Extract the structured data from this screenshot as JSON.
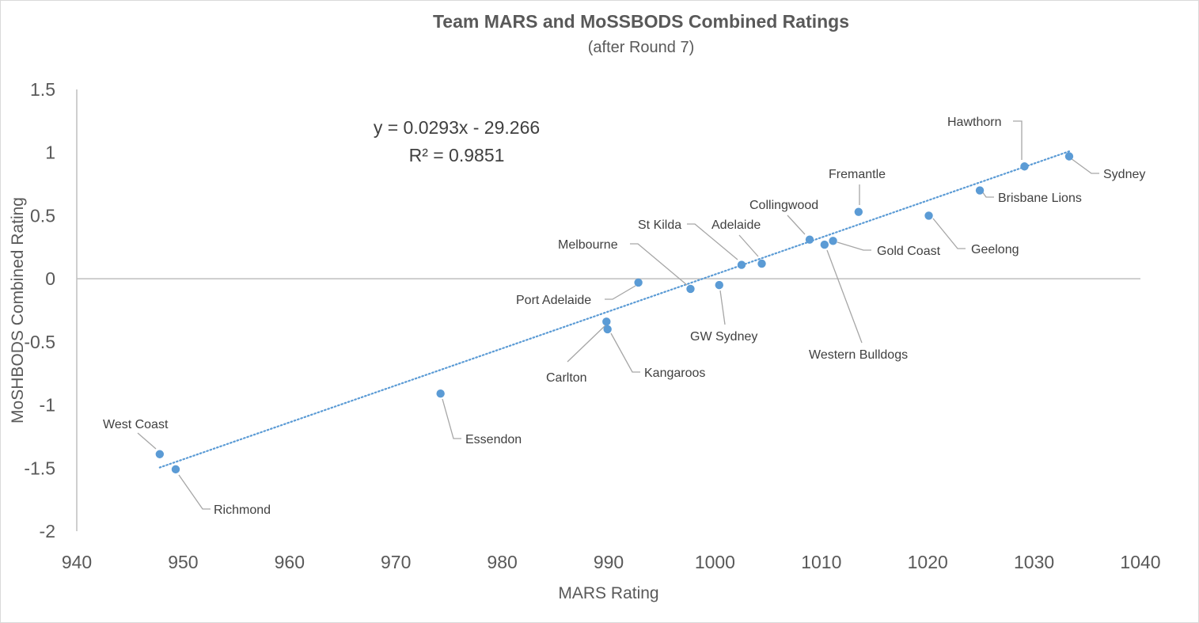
{
  "chart_data": {
    "type": "scatter",
    "title": "Team MARS and MoSSBODS Combined Ratings",
    "subtitle": "(after Round 7)",
    "xlabel": "MARS Rating",
    "ylabel": "MoSHBODS Combined Rating",
    "xlim": [
      940,
      1040
    ],
    "ylim": [
      -2,
      1.5
    ],
    "xticks": [
      940,
      950,
      960,
      970,
      980,
      990,
      1000,
      1010,
      1020,
      1030,
      1040
    ],
    "yticks": [
      -2,
      -1.5,
      -1,
      -0.5,
      0,
      0.5,
      1,
      1.5
    ],
    "ytick_labels": [
      "-2",
      "-1.5",
      "-1",
      "-0.5",
      "0",
      "0.5",
      "1",
      "1.5"
    ],
    "grid": false,
    "colors": {
      "points": "#5b9bd5",
      "trend": "#5b9bd5",
      "axis": "#bfbfbf",
      "leader": "#a6a6a6",
      "text": "#595959"
    },
    "trendline": {
      "slope": 0.0293,
      "intercept": -29.266,
      "x_range": [
        947.8,
        1033.3
      ],
      "equation": "y = 0.0293x - 29.266",
      "r2": "R² = 0.9851"
    },
    "points": [
      {
        "label": "West Coast",
        "x": 947.8,
        "y": -1.39
      },
      {
        "label": "Richmond",
        "x": 949.3,
        "y": -1.51
      },
      {
        "label": "Essendon",
        "x": 974.2,
        "y": -0.91
      },
      {
        "label": "Carlton",
        "x": 989.8,
        "y": -0.34
      },
      {
        "label": "Kangaroos",
        "x": 989.9,
        "y": -0.4
      },
      {
        "label": "Port Adelaide",
        "x": 992.8,
        "y": -0.03
      },
      {
        "label": "Melbourne",
        "x": 997.7,
        "y": -0.08
      },
      {
        "label": "GW Sydney",
        "x": 1000.4,
        "y": -0.05
      },
      {
        "label": "St Kilda",
        "x": 1002.5,
        "y": 0.11
      },
      {
        "label": "Adelaide",
        "x": 1004.4,
        "y": 0.12
      },
      {
        "label": "Collingwood",
        "x": 1008.9,
        "y": 0.31
      },
      {
        "label": "Western Bulldogs",
        "x": 1010.3,
        "y": 0.27
      },
      {
        "label": "Gold Coast",
        "x": 1011.1,
        "y": 0.3
      },
      {
        "label": "Fremantle",
        "x": 1013.5,
        "y": 0.53
      },
      {
        "label": "Geelong",
        "x": 1020.1,
        "y": 0.5
      },
      {
        "label": "Brisbane Lions",
        "x": 1024.9,
        "y": 0.7
      },
      {
        "label": "Hawthorn",
        "x": 1029.1,
        "y": 0.89
      },
      {
        "label": "Sydney",
        "x": 1033.3,
        "y": 0.97
      }
    ]
  }
}
